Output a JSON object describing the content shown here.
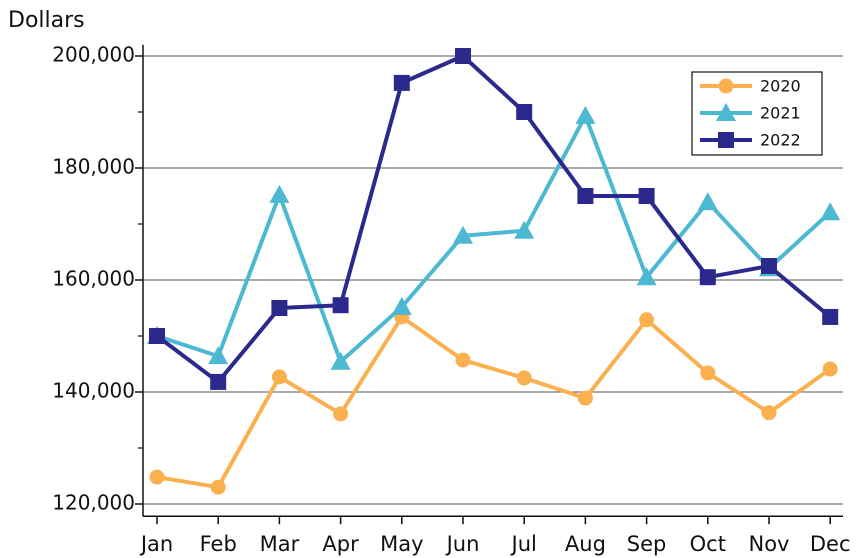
{
  "chart_data": {
    "type": "line",
    "y_label": "Dollars",
    "categories": [
      "Jan",
      "Feb",
      "Mar",
      "Apr",
      "May",
      "Jun",
      "Jul",
      "Aug",
      "Sep",
      "Oct",
      "Nov",
      "Dec"
    ],
    "series": [
      {
        "name": "2020",
        "color": "#fbb050",
        "marker": "circle",
        "values": [
          124800,
          123000,
          142700,
          136100,
          153400,
          145700,
          142500,
          138900,
          152900,
          143400,
          136300,
          144100
        ]
      },
      {
        "name": "2021",
        "color": "#4db8d2",
        "marker": "triangle",
        "values": [
          150000,
          146400,
          175200,
          145400,
          155200,
          167900,
          168800,
          189300,
          160500,
          173900,
          162100,
          172100
        ]
      },
      {
        "name": "2022",
        "color": "#2b2a8c",
        "marker": "square",
        "values": [
          150000,
          141800,
          155000,
          155500,
          195200,
          200000,
          190000,
          175000,
          175000,
          160500,
          162500,
          153400
        ]
      }
    ],
    "ylim": [
      118000,
      202000
    ],
    "yticks": [
      {
        "value": 120000,
        "label": "120,000"
      },
      {
        "value": 140000,
        "label": "140,000"
      },
      {
        "value": 160000,
        "label": "160,000"
      },
      {
        "value": 180000,
        "label": "180,000"
      },
      {
        "value": 200000,
        "label": "200,000"
      }
    ],
    "grid": true,
    "legend": "upper right"
  }
}
